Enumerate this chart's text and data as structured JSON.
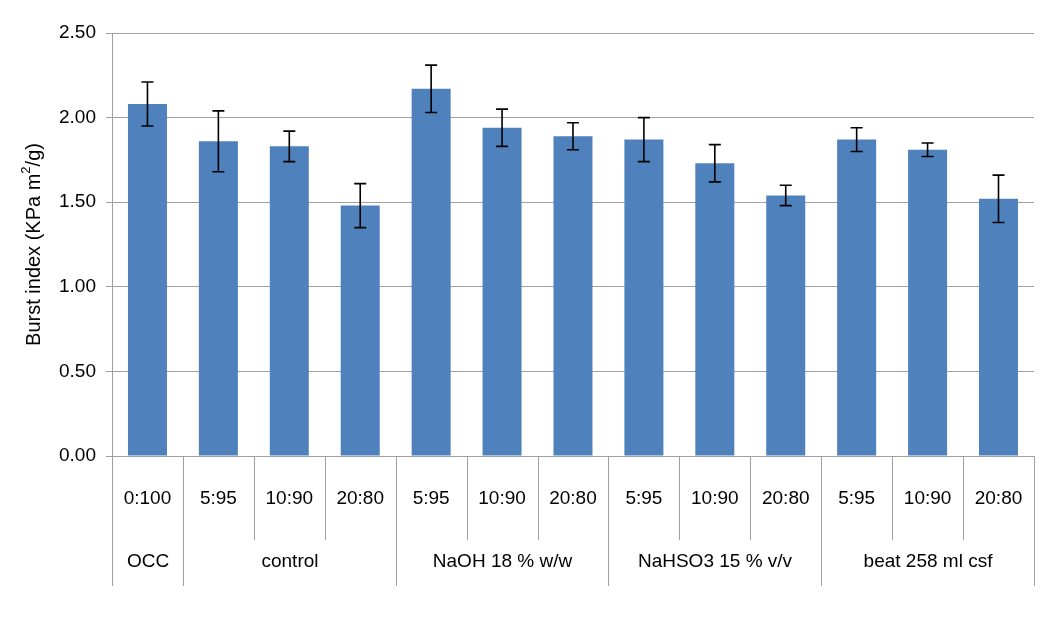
{
  "chart_data": {
    "type": "bar",
    "ylabel": "Burst index (KPa m$^{2}$/g)",
    "categories": [
      "0:100",
      "5:95",
      "10:90",
      "20:80",
      "5:95",
      "10:90",
      "20:80",
      "5:95",
      "10:90",
      "20:80",
      "5:95",
      "10:90",
      "20:80"
    ],
    "values": [
      2.08,
      1.86,
      1.83,
      1.48,
      2.17,
      1.94,
      1.89,
      1.87,
      1.73,
      1.54,
      1.87,
      1.81,
      1.52
    ],
    "errors": [
      0.13,
      0.18,
      0.09,
      0.13,
      0.14,
      0.11,
      0.08,
      0.13,
      0.11,
      0.06,
      0.07,
      0.04,
      0.14
    ],
    "color": "#4f81bd",
    "ylim": [
      0,
      2.5
    ],
    "yticks": [
      {
        "value": 0,
        "label": "0.00"
      },
      {
        "value": 0.5,
        "label": "0.50"
      },
      {
        "value": 1,
        "label": "1.00"
      },
      {
        "value": 1.5,
        "label": "1.50"
      },
      {
        "value": 2,
        "label": "2.00"
      },
      {
        "value": 2.5,
        "label": "2.50"
      }
    ],
    "grid": "y",
    "legend": false,
    "annotations": [
      "OCC",
      "control",
      "NaOH 18 % w/w",
      "NaHSO3 15 % v/v",
      "beat 258 ml csf"
    ]
  }
}
